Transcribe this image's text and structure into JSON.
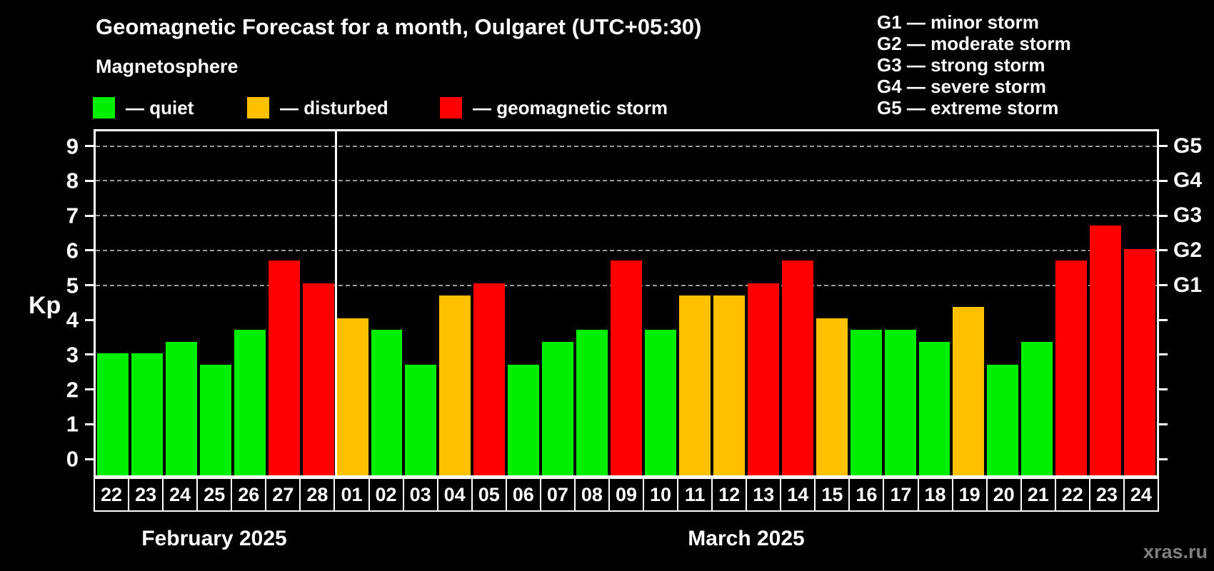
{
  "title": "Geomagnetic Forecast for a month, Oulgaret (UTC+05:30)",
  "subtitle": "Magnetosphere",
  "legend": {
    "items": [
      {
        "status": "quiet",
        "label": "— quiet"
      },
      {
        "status": "disturbed",
        "label": "— disturbed"
      },
      {
        "status": "storm",
        "label": "— geomagnetic storm"
      }
    ]
  },
  "g_scale_legend": [
    "G1 — minor storm",
    "G2 — moderate storm",
    "G3 — strong storm",
    "G4 — severe storm",
    "G5 — extreme storm"
  ],
  "watermark": "xras.ru",
  "colors": {
    "quiet": "#00ee00",
    "disturbed": "#ffc000",
    "storm": "#ff0000",
    "axis": "#ffffff",
    "grid": "#9a9a9a",
    "background": "#000000",
    "watermark": "#7f7f7f"
  },
  "chart_data": {
    "type": "bar",
    "title": "Geomagnetic Forecast for a month, Oulgaret (UTC+05:30)",
    "subtitle": "Magnetosphere",
    "ylabel": "Kp",
    "ylim": [
      0,
      9
    ],
    "y_ticks": [
      0,
      1,
      2,
      3,
      4,
      5,
      6,
      7,
      8,
      9
    ],
    "grid": "horizontal dashed lines at Kp 5-9 (G1-G5)",
    "legend_position": "top",
    "g_levels": [
      {
        "kp": 5,
        "label": "G1"
      },
      {
        "kp": 6,
        "label": "G2"
      },
      {
        "kp": 7,
        "label": "G3"
      },
      {
        "kp": 8,
        "label": "G4"
      },
      {
        "kp": 9,
        "label": "G5"
      }
    ],
    "month_labels": [
      "February 2025",
      "March 2025"
    ],
    "month_boundary_after_index": 6,
    "categories": [
      "22",
      "23",
      "24",
      "25",
      "26",
      "27",
      "28",
      "01",
      "02",
      "03",
      "04",
      "05",
      "06",
      "07",
      "08",
      "09",
      "10",
      "11",
      "12",
      "13",
      "14",
      "15",
      "16",
      "17",
      "18",
      "19",
      "20",
      "21",
      "22",
      "23",
      "24"
    ],
    "values": [
      3.0,
      3.0,
      3.33,
      2.67,
      3.67,
      5.67,
      5.0,
      4.0,
      3.67,
      2.67,
      4.67,
      5.0,
      2.67,
      3.33,
      3.67,
      5.67,
      3.67,
      4.67,
      4.67,
      5.0,
      5.67,
      4.0,
      3.67,
      3.67,
      3.33,
      4.33,
      2.67,
      3.33,
      5.67,
      6.67,
      6.0
    ],
    "statuses": [
      "quiet",
      "quiet",
      "quiet",
      "quiet",
      "quiet",
      "storm",
      "storm",
      "disturbed",
      "quiet",
      "quiet",
      "disturbed",
      "storm",
      "quiet",
      "quiet",
      "quiet",
      "storm",
      "quiet",
      "disturbed",
      "disturbed",
      "storm",
      "storm",
      "disturbed",
      "quiet",
      "quiet",
      "quiet",
      "disturbed",
      "quiet",
      "quiet",
      "storm",
      "storm",
      "storm"
    ]
  }
}
